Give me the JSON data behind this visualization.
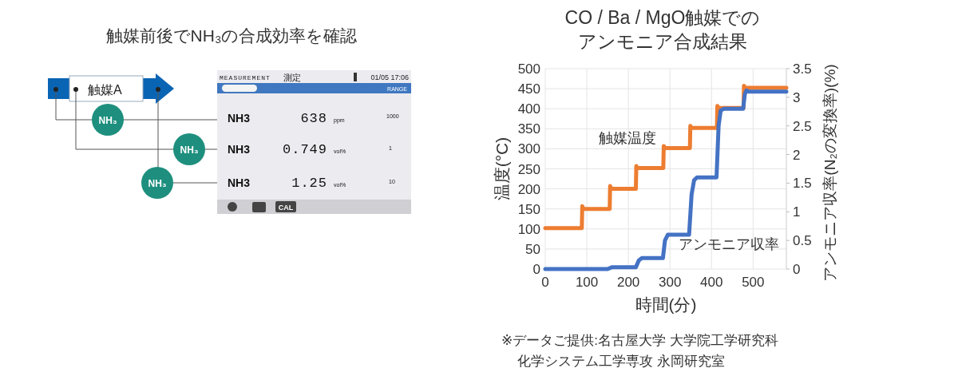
{
  "chart_data": [
    {
      "type": "other",
      "title": "触媒前後でNH₃の合成効率を確認",
      "annotations": [
        "触媒A",
        "NH₃",
        "NH₃",
        "NH₃",
        "MEASUREMENT",
        "測定",
        "01/05 17:06",
        "RANGE",
        "NH3",
        "638",
        "ppm",
        "1000",
        "NH3",
        "0.749",
        "vol%",
        "1",
        "NH3",
        "1.25",
        "vol%",
        "10",
        "CAL"
      ]
    },
    {
      "type": "line",
      "title": "CO / Ba / MgO触媒での",
      "subtitle": "アンモニア合成結果",
      "xlabel": "時間(分)",
      "ylabel": "温度(°C)",
      "y2label": "アンモニア収率(N₂の変換率)(%)",
      "xlim": [
        0,
        580
      ],
      "xticks": [
        0,
        100,
        200,
        300,
        400,
        500
      ],
      "ylim": [
        0,
        500
      ],
      "yticks": [
        0,
        50,
        100,
        150,
        200,
        250,
        300,
        350,
        400,
        450,
        500
      ],
      "y2lim": [
        0,
        3.5
      ],
      "y2ticks": [
        0,
        0.5,
        1,
        1.5,
        2,
        2.5,
        3,
        3.5
      ],
      "grid": true,
      "legend": false,
      "marker": "none",
      "line_style": "solid",
      "annotations": [
        "※データご提供:名古屋大学 大学院工学研究科",
        "化学システム工学専攻 永岡研究室"
      ],
      "series": [
        {
          "name": "触媒温度",
          "color": "#ed7d31",
          "x": [
            0,
            88,
            89,
            92,
            155,
            156,
            159,
            218,
            219,
            222,
            284,
            285,
            288,
            348,
            349,
            352,
            413,
            414,
            417,
            477,
            478,
            481,
            580
          ],
          "values": [
            102,
            102,
            157,
            150,
            150,
            207,
            200,
            200,
            257,
            252,
            252,
            307,
            302,
            302,
            357,
            352,
            352,
            407,
            402,
            402,
            457,
            452,
            452
          ]
        },
        {
          "name": "アンモニア収率",
          "color": "#4472c4",
          "axis": "y2",
          "x": [
            0,
            150,
            160,
            218,
            225,
            232,
            283,
            288,
            295,
            346,
            352,
            358,
            365,
            412,
            417,
            422,
            430,
            476,
            480,
            484,
            490,
            580
          ],
          "values": [
            0,
            0,
            0.03,
            0.03,
            0.15,
            0.19,
            0.19,
            0.5,
            0.6,
            0.6,
            1.3,
            1.55,
            1.6,
            1.6,
            2.5,
            2.77,
            2.8,
            2.8,
            3.05,
            3.12,
            3.1,
            3.1
          ]
        }
      ]
    }
  ]
}
